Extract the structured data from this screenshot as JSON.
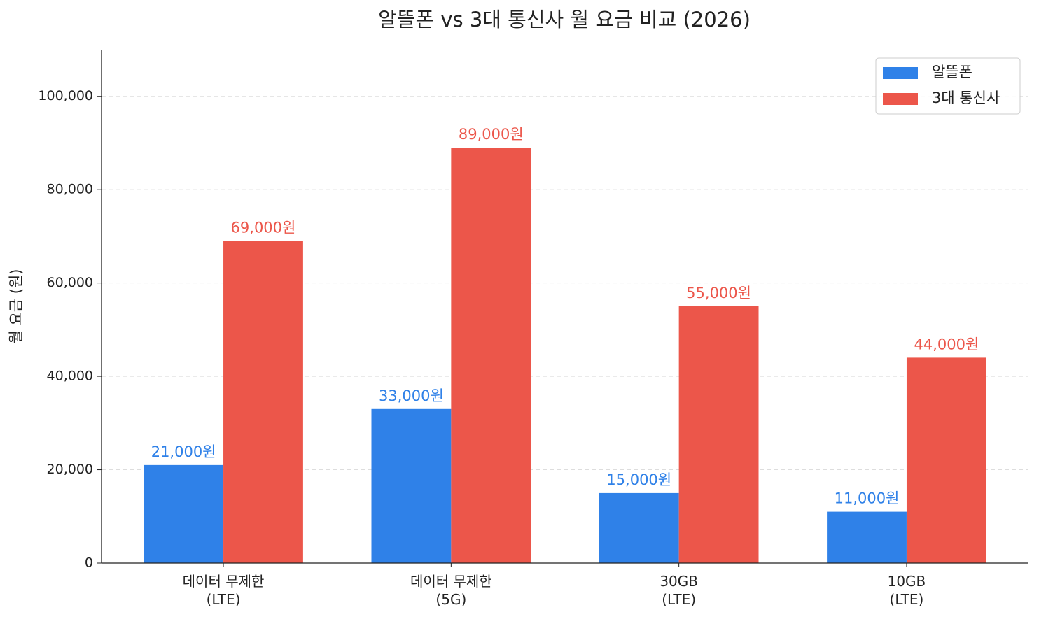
{
  "chart_data": {
    "type": "bar",
    "title": "알뜰폰 vs 3대 통신사 월 요금 비교 (2026)",
    "ylabel": "월 요금 (원)",
    "categories": [
      "데이터 무제한\n(LTE)",
      "데이터 무제한\n(5G)",
      "30GB\n(LTE)",
      "10GB\n(LTE)"
    ],
    "series": [
      {
        "name": "알뜰폰",
        "color": "#2f81e8",
        "values": [
          21000,
          33000,
          15000,
          11000
        ],
        "value_labels": [
          "21,000원",
          "33,000원",
          "15,000원",
          "11,000원"
        ]
      },
      {
        "name": "3대 통신사",
        "color": "#ec564a",
        "values": [
          69000,
          89000,
          55000,
          44000
        ],
        "value_labels": [
          "69,000원",
          "89,000원",
          "55,000원",
          "44,000원"
        ]
      }
    ],
    "ylim": [
      0,
      110000
    ],
    "yticks": [
      0,
      {
        "value": 20000,
        "label": "20,000"
      },
      {
        "value": 40000,
        "label": "40,000"
      },
      {
        "value": 60000,
        "label": "60,000"
      },
      {
        "value": 80000,
        "label": "80,000"
      },
      {
        "value": 100000,
        "label": "100,000"
      }
    ],
    "grid": true,
    "legend": "upper right"
  }
}
